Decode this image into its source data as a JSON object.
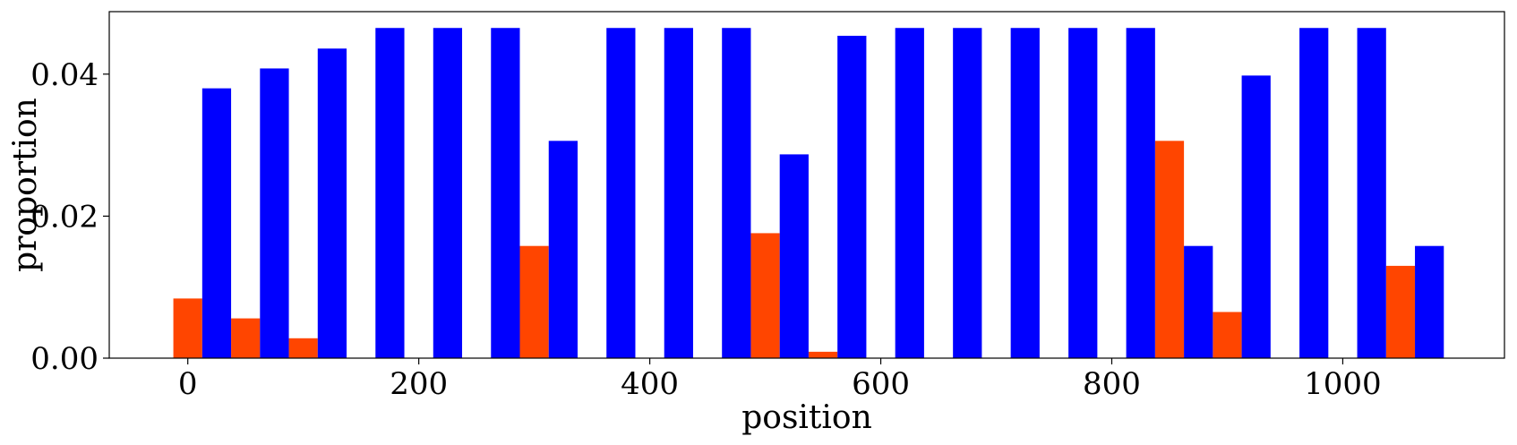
{
  "chart_data": {
    "type": "bar",
    "title": "",
    "xlabel": "position",
    "ylabel": "proportion",
    "xlim": [
      -68,
      1140
    ],
    "ylim": [
      0,
      0.0488
    ],
    "x_ticks": [
      0,
      200,
      400,
      600,
      800,
      1000
    ],
    "x_tick_labels": [
      "0",
      "200",
      "400",
      "600",
      "800",
      "1000"
    ],
    "y_ticks": [
      0,
      0.02,
      0.04
    ],
    "y_tick_labels": [
      "0.00",
      "0.02",
      "0.04"
    ],
    "bar_width": 25,
    "series": [
      {
        "name": "orange",
        "color": "#ff4500",
        "x": [
          0,
          50,
          100,
          150,
          200,
          250,
          300,
          350,
          400,
          450,
          500,
          550,
          600,
          650,
          700,
          750,
          800,
          850,
          900,
          950,
          1000,
          1050
        ],
        "values": [
          0.0084,
          0.0056,
          0.0028,
          0,
          0,
          0,
          0.0158,
          0,
          0,
          0,
          0.0176,
          0.0009,
          0,
          0,
          0,
          0,
          0,
          0.0306,
          0.0065,
          0,
          0,
          0.013
        ]
      },
      {
        "name": "blue",
        "color": "#0000ff",
        "x": [
          0,
          50,
          100,
          150,
          200,
          250,
          300,
          350,
          400,
          450,
          500,
          550,
          600,
          650,
          700,
          750,
          800,
          850,
          900,
          950,
          1000,
          1050
        ],
        "values": [
          0.038,
          0.0408,
          0.0436,
          0.0465,
          0.0465,
          0.0465,
          0.0306,
          0.0465,
          0.0465,
          0.0465,
          0.0287,
          0.0454,
          0.0465,
          0.0465,
          0.0465,
          0.0465,
          0.0465,
          0.0158,
          0.0398,
          0.0465,
          0.0465,
          0.0158
        ]
      }
    ]
  }
}
